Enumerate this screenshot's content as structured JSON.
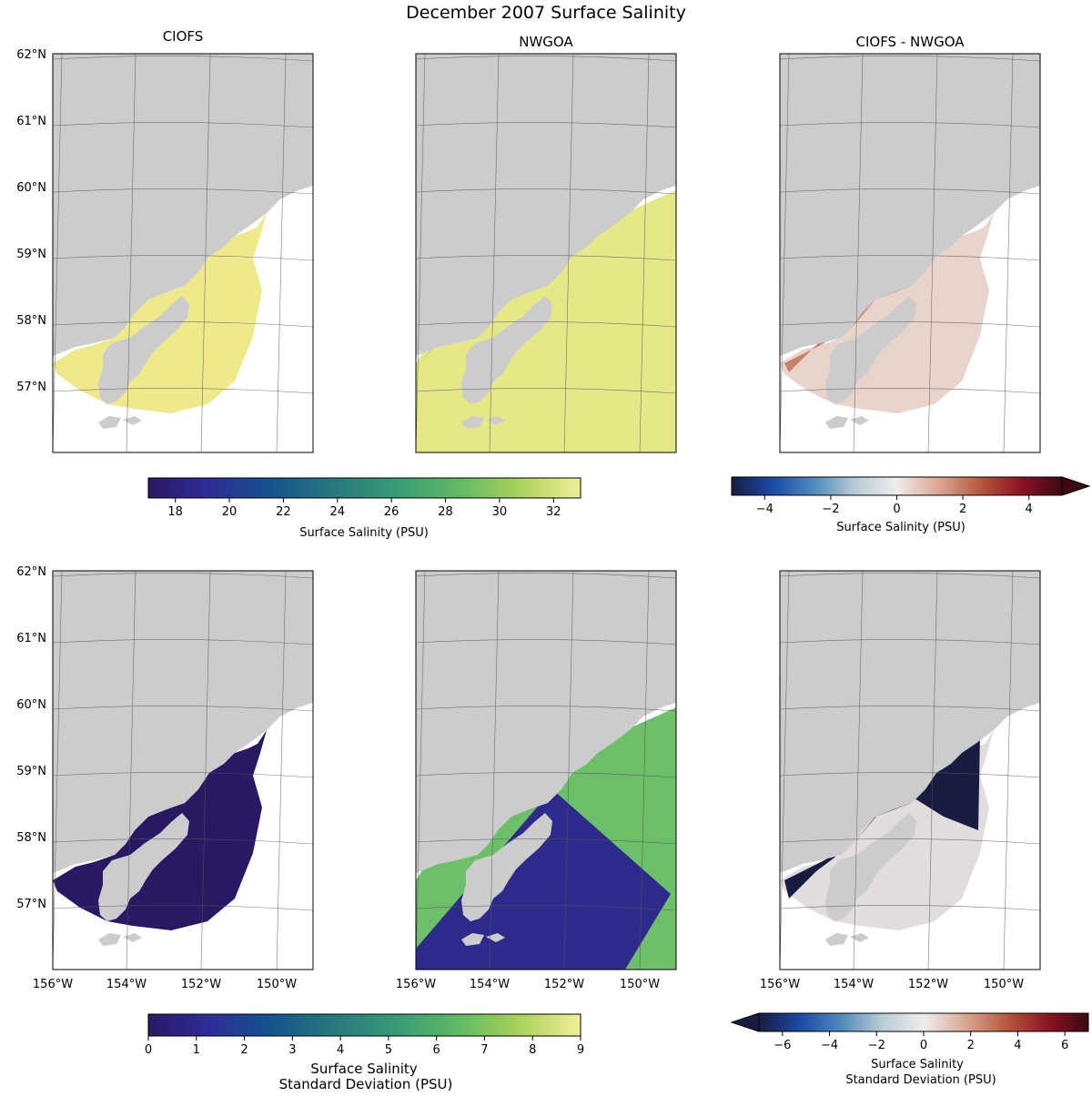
{
  "chart_data": {
    "type": "heatmap",
    "title": "December 2007 Surface Salinity",
    "panels": [
      {
        "id": "r1c1",
        "title": "CIOFS",
        "field": "mean salinity",
        "cmap": "haline"
      },
      {
        "id": "r1c2",
        "title": "NWGOA",
        "field": "mean salinity",
        "cmap": "haline"
      },
      {
        "id": "r1c3",
        "title": "CIOFS - NWGOA",
        "field": "mean salinity difference",
        "cmap": "balance"
      },
      {
        "id": "r2c1",
        "title": "",
        "field": "salinity std",
        "cmap": "haline"
      },
      {
        "id": "r2c2",
        "title": "",
        "field": "salinity std",
        "cmap": "haline"
      },
      {
        "id": "r2c3",
        "title": "",
        "field": "salinity std difference",
        "cmap": "balance"
      }
    ],
    "lat_ticks": [
      "62°N",
      "61°N",
      "60°N",
      "59°N",
      "58°N",
      "57°N"
    ],
    "lon_ticks": [
      "156°W",
      "154°W",
      "152°W",
      "150°W"
    ],
    "colorbars": [
      {
        "id": "salinity",
        "label": "Surface Salinity (PSU)",
        "range": [
          17,
          33
        ],
        "ticks": [
          18,
          20,
          22,
          24,
          26,
          28,
          30,
          32
        ],
        "extend": "neither"
      },
      {
        "id": "salinity-diff",
        "label": "Surface Salinity (PSU)",
        "range": [
          -5,
          5
        ],
        "ticks": [
          -4,
          -2,
          0,
          2,
          4
        ],
        "extend": "max"
      },
      {
        "id": "std",
        "label_lines": [
          "Surface Salinity",
          "Standard Deviation (PSU)"
        ],
        "range": [
          0,
          9
        ],
        "ticks": [
          0,
          1,
          2,
          3,
          4,
          5,
          6,
          7,
          8,
          9
        ],
        "extend": "neither"
      },
      {
        "id": "std-diff",
        "label_lines": [
          "Surface Salinity",
          "Standard Deviation (PSU)"
        ],
        "range": [
          -7,
          7
        ],
        "ticks": [
          -6,
          -4,
          -2,
          0,
          2,
          4,
          6
        ],
        "extend": "min"
      }
    ],
    "colors": {
      "haline": [
        "#2a1864",
        "#2e2d98",
        "#14548c",
        "#28787e",
        "#379a77",
        "#5fb964",
        "#a8d25a",
        "#f4ee98"
      ],
      "balance": [
        "#181c43",
        "#1b4aa6",
        "#4f8bbc",
        "#b8cdd6",
        "#f1ecec",
        "#d9a894",
        "#b85a3e",
        "#8c1424",
        "#3c0912"
      ],
      "land": "#cccccc"
    }
  }
}
